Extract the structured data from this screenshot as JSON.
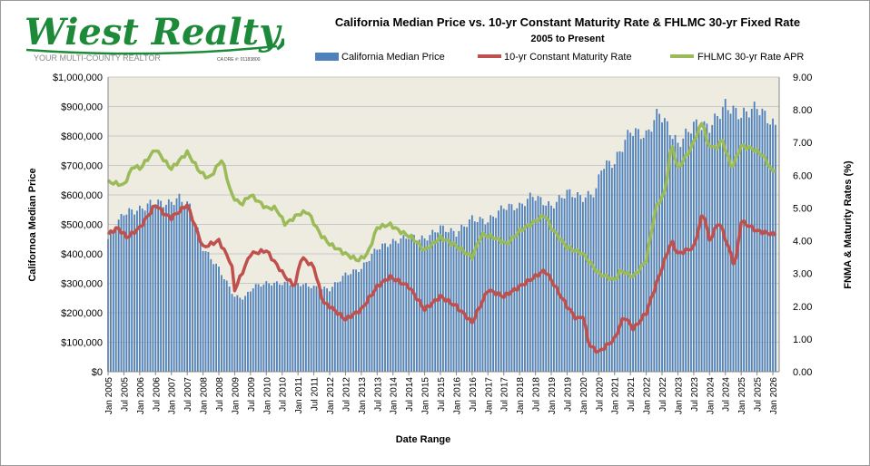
{
  "logo": {
    "name": "Wiest Realty, Inc",
    "tagline": "YOUR MULTI-COUNTY REALTOR",
    "license": "CA DRE #: 01183800"
  },
  "chart_data": {
    "type": "bar+line",
    "title": "California Median Price vs. 10-yr Constant Maturity Rate & FHLMC 30-yr Fixed Rate",
    "subtitle": "2005 to Present",
    "xlabel": "Date Range",
    "ylabel": "Californoa  Median  Price",
    "y2label": "FNMA & Maturity Rates (%)",
    "ylim": [
      0,
      1000000
    ],
    "y2lim": [
      0,
      9
    ],
    "y_ticks": [
      "$0",
      "$100,000",
      "$200,000",
      "$300,000",
      "$400,000",
      "$500,000",
      "$600,000",
      "$700,000",
      "$800,000",
      "$900,000",
      "$1,000,000"
    ],
    "y2_ticks": [
      "0.00",
      "1.00",
      "2.00",
      "3.00",
      "4.00",
      "5.00",
      "6.00",
      "7.00",
      "8.00",
      "9.00"
    ],
    "x_ticks": [
      "Jan 2005",
      "Jul 2005",
      "Jan 2006",
      "Jul 2006",
      "Jan 2007",
      "Jul 2007",
      "Jan 2008",
      "Jul 2008",
      "Jan 2009",
      "Jul 2009",
      "Jan 2010",
      "Jul 2010",
      "Jan 2011",
      "Jul 2011",
      "Jan 2012",
      "Jul 2012",
      "Jan 2013",
      "Jul 2013",
      "Jan 2014",
      "Jul 2014",
      "Jan 2015",
      "Jul 2015",
      "Jan 2016",
      "Jul 2016",
      "Jan 2017",
      "Jul 2017",
      "Jan 2018",
      "Jul 2018",
      "Jan 2019",
      "Jul 2019",
      "Jan 2020",
      "Jul 2020",
      "Jan 2021",
      "Jul 2021",
      "Jan 2022",
      "Jul 2022",
      "Jan 2023",
      "Jul 2023",
      "Jan 2024",
      "Jul 2024",
      "Jan 2025",
      "Jul 2025",
      "Jan 2026"
    ],
    "legend": [
      "California Median Price",
      "10-yr Constant Maturity Rate",
      "FHLMC 30-yr Rate APR"
    ],
    "series": [
      {
        "name": "California Median Price",
        "axis": "left",
        "color": "#4f81bd",
        "anchors": [
          [
            2005.0,
            450000
          ],
          [
            2005.5,
            540000
          ],
          [
            2006.0,
            550000
          ],
          [
            2006.4,
            575000
          ],
          [
            2006.9,
            570000
          ],
          [
            2007.25,
            590000
          ],
          [
            2007.6,
            560000
          ],
          [
            2008.0,
            420000
          ],
          [
            2008.5,
            350000
          ],
          [
            2009.0,
            255000
          ],
          [
            2009.3,
            250000
          ],
          [
            2009.6,
            290000
          ],
          [
            2010.0,
            300000
          ],
          [
            2010.6,
            300000
          ],
          [
            2011.0,
            300000
          ],
          [
            2011.6,
            285000
          ],
          [
            2012.0,
            280000
          ],
          [
            2012.5,
            330000
          ],
          [
            2013.0,
            350000
          ],
          [
            2013.5,
            420000
          ],
          [
            2014.0,
            440000
          ],
          [
            2014.5,
            460000
          ],
          [
            2015.0,
            450000
          ],
          [
            2015.5,
            490000
          ],
          [
            2016.0,
            470000
          ],
          [
            2016.5,
            520000
          ],
          [
            2017.0,
            510000
          ],
          [
            2017.5,
            560000
          ],
          [
            2018.0,
            560000
          ],
          [
            2018.4,
            600000
          ],
          [
            2019.0,
            560000
          ],
          [
            2019.5,
            610000
          ],
          [
            2020.0,
            590000
          ],
          [
            2020.4,
            610000
          ],
          [
            2020.6,
            700000
          ],
          [
            2021.0,
            710000
          ],
          [
            2021.5,
            820000
          ],
          [
            2022.0,
            800000
          ],
          [
            2022.4,
            885000
          ],
          [
            2023.0,
            770000
          ],
          [
            2023.5,
            840000
          ],
          [
            2024.0,
            830000
          ],
          [
            2024.5,
            905000
          ],
          [
            2025.0,
            870000
          ],
          [
            2025.5,
            900000
          ],
          [
            2026.0,
            840000
          ],
          [
            2026.1,
            830000
          ]
        ]
      },
      {
        "name": "10-yr Constant Maturity Rate",
        "axis": "right",
        "color": "#c0504d",
        "anchors": [
          [
            2005.0,
            4.2
          ],
          [
            2005.3,
            4.4
          ],
          [
            2005.6,
            4.1
          ],
          [
            2006.0,
            4.4
          ],
          [
            2006.5,
            5.1
          ],
          [
            2006.8,
            4.8
          ],
          [
            2007.0,
            4.7
          ],
          [
            2007.5,
            5.1
          ],
          [
            2008.0,
            3.8
          ],
          [
            2008.5,
            4.0
          ],
          [
            2008.9,
            3.3
          ],
          [
            2009.0,
            2.5
          ],
          [
            2009.5,
            3.6
          ],
          [
            2010.0,
            3.7
          ],
          [
            2010.6,
            2.9
          ],
          [
            2010.9,
            2.6
          ],
          [
            2011.1,
            3.5
          ],
          [
            2011.5,
            3.2
          ],
          [
            2011.8,
            2.1
          ],
          [
            2012.0,
            2.0
          ],
          [
            2012.5,
            1.6
          ],
          [
            2013.0,
            1.9
          ],
          [
            2013.5,
            2.6
          ],
          [
            2013.9,
            2.9
          ],
          [
            2014.5,
            2.6
          ],
          [
            2015.0,
            1.9
          ],
          [
            2015.5,
            2.3
          ],
          [
            2016.0,
            2.0
          ],
          [
            2016.5,
            1.5
          ],
          [
            2017.0,
            2.5
          ],
          [
            2017.5,
            2.3
          ],
          [
            2018.0,
            2.6
          ],
          [
            2018.8,
            3.1
          ],
          [
            2019.0,
            2.8
          ],
          [
            2019.5,
            2.0
          ],
          [
            2019.8,
            1.6
          ],
          [
            2020.0,
            1.7
          ],
          [
            2020.2,
            0.8
          ],
          [
            2020.5,
            0.6
          ],
          [
            2021.0,
            1.0
          ],
          [
            2021.3,
            1.7
          ],
          [
            2021.6,
            1.3
          ],
          [
            2022.0,
            1.8
          ],
          [
            2022.4,
            2.9
          ],
          [
            2022.8,
            4.0
          ],
          [
            2023.0,
            3.6
          ],
          [
            2023.5,
            3.8
          ],
          [
            2023.8,
            4.9
          ],
          [
            2024.0,
            4.0
          ],
          [
            2024.3,
            4.6
          ],
          [
            2024.6,
            3.8
          ],
          [
            2024.8,
            3.2
          ],
          [
            2025.0,
            4.6
          ],
          [
            2025.5,
            4.3
          ],
          [
            2026.0,
            4.2
          ],
          [
            2026.1,
            4.2
          ]
        ]
      },
      {
        "name": "FHLMC 30-yr Rate APR",
        "axis": "right",
        "color": "#9bbb59",
        "anchors": [
          [
            2005.0,
            5.8
          ],
          [
            2005.5,
            5.7
          ],
          [
            2005.8,
            6.3
          ],
          [
            2006.0,
            6.2
          ],
          [
            2006.5,
            6.8
          ],
          [
            2006.9,
            6.3
          ],
          [
            2007.0,
            6.2
          ],
          [
            2007.5,
            6.7
          ],
          [
            2007.9,
            6.1
          ],
          [
            2008.2,
            5.9
          ],
          [
            2008.6,
            6.5
          ],
          [
            2008.9,
            5.4
          ],
          [
            2009.2,
            5.1
          ],
          [
            2009.5,
            5.4
          ],
          [
            2010.0,
            5.0
          ],
          [
            2010.3,
            5.0
          ],
          [
            2010.6,
            4.5
          ],
          [
            2011.0,
            4.8
          ],
          [
            2011.3,
            4.9
          ],
          [
            2011.7,
            4.2
          ],
          [
            2012.0,
            3.9
          ],
          [
            2012.5,
            3.6
          ],
          [
            2012.9,
            3.4
          ],
          [
            2013.2,
            3.6
          ],
          [
            2013.5,
            4.4
          ],
          [
            2013.9,
            4.5
          ],
          [
            2014.2,
            4.3
          ],
          [
            2014.6,
            4.1
          ],
          [
            2015.0,
            3.7
          ],
          [
            2015.5,
            4.1
          ],
          [
            2015.9,
            3.9
          ],
          [
            2016.5,
            3.5
          ],
          [
            2016.8,
            4.2
          ],
          [
            2017.2,
            4.1
          ],
          [
            2017.6,
            3.9
          ],
          [
            2018.0,
            4.3
          ],
          [
            2018.5,
            4.6
          ],
          [
            2018.8,
            4.8
          ],
          [
            2019.0,
            4.4
          ],
          [
            2019.5,
            3.8
          ],
          [
            2020.0,
            3.6
          ],
          [
            2020.5,
            3.0
          ],
          [
            2021.0,
            2.8
          ],
          [
            2021.2,
            3.1
          ],
          [
            2021.6,
            2.9
          ],
          [
            2022.0,
            3.4
          ],
          [
            2022.3,
            5.0
          ],
          [
            2022.6,
            5.5
          ],
          [
            2022.8,
            7.0
          ],
          [
            2023.0,
            6.2
          ],
          [
            2023.4,
            6.8
          ],
          [
            2023.8,
            7.7
          ],
          [
            2023.9,
            7.0
          ],
          [
            2024.2,
            6.8
          ],
          [
            2024.4,
            7.1
          ],
          [
            2024.7,
            6.2
          ],
          [
            2025.0,
            6.9
          ],
          [
            2025.4,
            6.8
          ],
          [
            2025.7,
            6.6
          ],
          [
            2026.0,
            6.1
          ],
          [
            2026.1,
            6.2
          ]
        ]
      }
    ]
  }
}
